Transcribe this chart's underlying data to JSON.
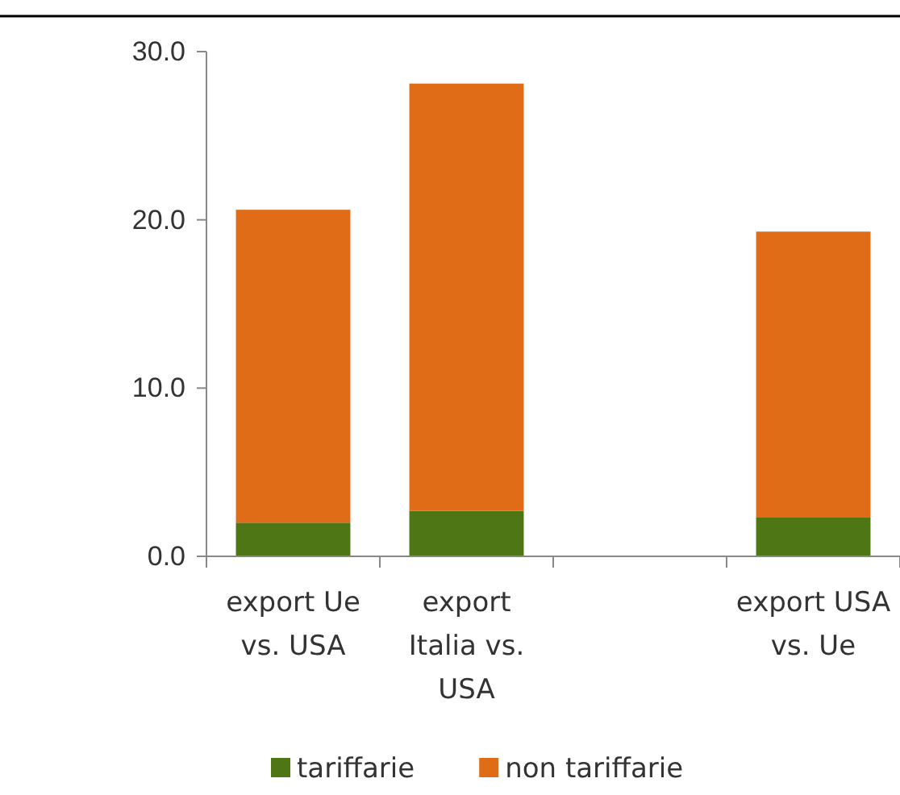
{
  "chart_data": {
    "type": "bar",
    "stacked": true,
    "categories": [
      "export Ue vs. USA",
      "export Italia vs. USA",
      null,
      "export USA vs. Ue"
    ],
    "series": [
      {
        "name": "tariffarie",
        "color": "#4f7614",
        "values": [
          2.0,
          2.7,
          null,
          2.3
        ]
      },
      {
        "name": "non tariffarie",
        "color": "#e06c17",
        "values": [
          18.6,
          25.4,
          null,
          17.0
        ]
      }
    ],
    "ylim": [
      0,
      30
    ],
    "yticks": [
      {
        "value": 0,
        "label": "0.0"
      },
      {
        "value": 10,
        "label": "10.0"
      },
      {
        "value": 20,
        "label": "20.0"
      },
      {
        "value": 30,
        "label": "30.0"
      }
    ],
    "grid": false,
    "legend": "bottom"
  }
}
